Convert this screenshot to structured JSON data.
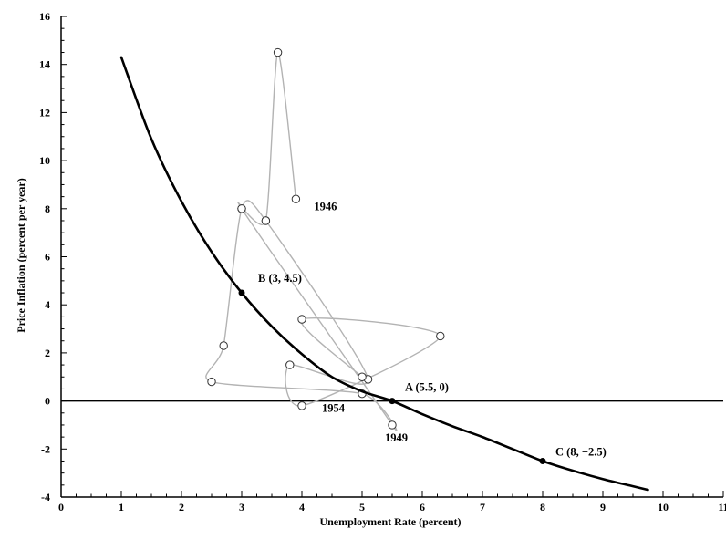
{
  "chart_data": {
    "type": "line",
    "title": "",
    "xlabel": "Unemployment Rate (percent)",
    "ylabel": "Price Inflation (percent per year)",
    "xlim": [
      0,
      11
    ],
    "ylim": [
      -4,
      16
    ],
    "x_ticks": [
      "0",
      "1",
      "2",
      "3",
      "4",
      "5",
      "6",
      "7",
      "8",
      "9",
      "10",
      "11"
    ],
    "y_ticks": [
      "-4",
      "-2",
      "0",
      "2",
      "4",
      "6",
      "8",
      "10",
      "12",
      "14",
      "16"
    ],
    "grid": false,
    "curve": {
      "x": [
        1.0,
        1.5,
        2.0,
        2.5,
        3.0,
        3.5,
        4.0,
        4.5,
        5.0,
        5.5,
        6.0,
        6.5,
        7.0,
        7.5,
        8.0,
        8.5,
        9.0,
        9.5,
        9.75
      ],
      "y": [
        14.3,
        10.9,
        8.3,
        6.2,
        4.5,
        3.1,
        1.95,
        1.0,
        0.4,
        0.0,
        -0.55,
        -1.05,
        -1.5,
        -2.0,
        -2.5,
        -2.9,
        -3.25,
        -3.55,
        -3.7
      ]
    },
    "historical_path": {
      "x": [
        3.9,
        3.6,
        3.4,
        3.0,
        5.5,
        5.0,
        2.5,
        2.7,
        3.0,
        3.4,
        5.1,
        3.8,
        4.0,
        6.3,
        4.0,
        5.0
      ],
      "y": [
        8.4,
        14.5,
        7.5,
        8.0,
        -1.0,
        0.3,
        0.8,
        2.3,
        8.0,
        7.5,
        0.9,
        1.5,
        -0.2,
        2.7,
        3.4,
        1.0
      ]
    },
    "points": [
      {
        "label": "B (3, 4.5)",
        "x": 3,
        "y": 4.5
      },
      {
        "label": "A (5.5, 0)",
        "x": 5.5,
        "y": 0
      },
      {
        "label": "C (8, −2.5)",
        "x": 8,
        "y": -2.5
      }
    ],
    "year_labels": [
      {
        "text": "1946",
        "x": 3.9,
        "y": 8.4
      },
      {
        "text": "1949",
        "x": 5.5,
        "y": -1.0
      },
      {
        "text": "1954",
        "x": 5.0,
        "y": 0.3
      }
    ]
  }
}
